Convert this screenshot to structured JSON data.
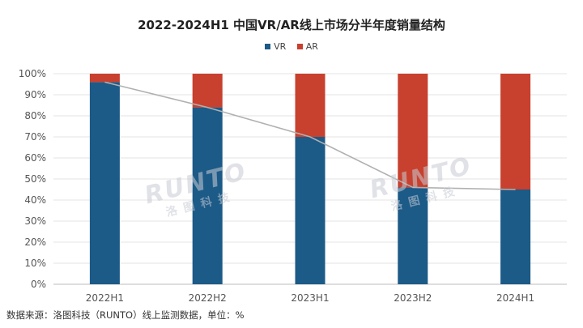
{
  "chart_data": {
    "type": "bar",
    "stacked": true,
    "title": "2022-2024H1 中国VR/AR线上市场分半年度销量结构",
    "categories": [
      "2022H1",
      "2022H2",
      "2023H1",
      "2023H2",
      "2024H1"
    ],
    "series": [
      {
        "name": "VR",
        "color": "#1c5a87",
        "values": [
          96,
          84,
          70,
          46,
          45
        ]
      },
      {
        "name": "AR",
        "color": "#c8402e",
        "values": [
          4,
          16,
          30,
          54,
          55
        ]
      }
    ],
    "trend_line": {
      "series": "VR",
      "color": "#b0b0b0"
    },
    "y_ticks": [
      "0%",
      "10%",
      "20%",
      "30%",
      "40%",
      "50%",
      "60%",
      "70%",
      "80%",
      "90%",
      "100%"
    ],
    "ylim": [
      0,
      100
    ],
    "legend_position": "top-center"
  },
  "watermark_text": "RUNTO 洛图科技",
  "source_note": "数据来源：洛图科技（RUNTO）线上监测数据，单位：%"
}
